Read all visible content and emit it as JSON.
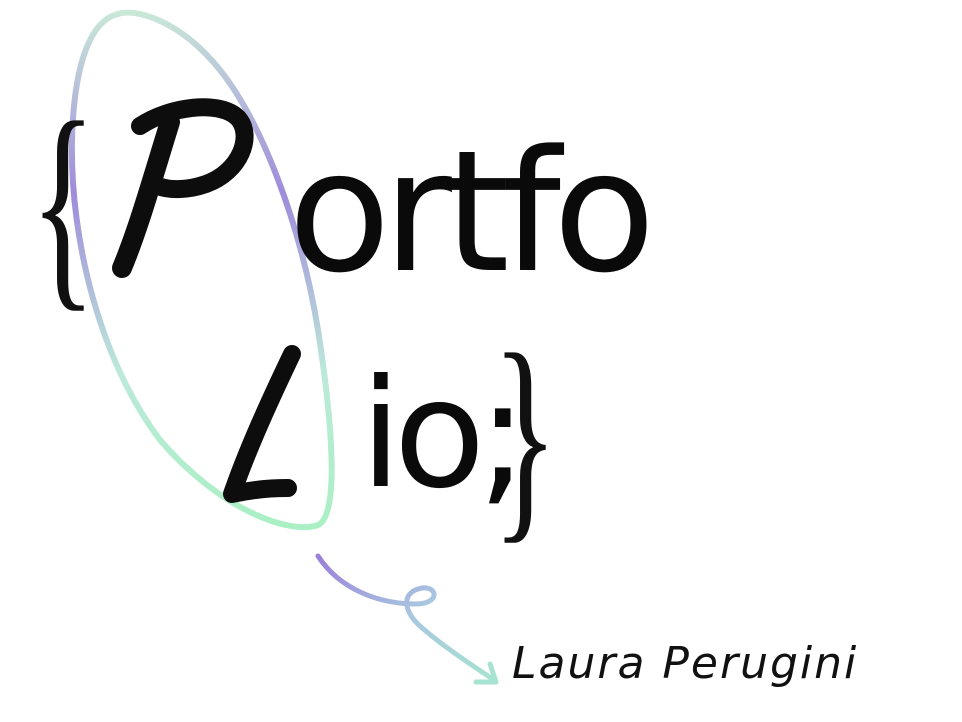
{
  "logo": {
    "open_brace": "{",
    "initial_p": "P",
    "rest_first_line": "ortfo",
    "initial_l": "L",
    "rest_second_line": "io;",
    "close_brace": "}",
    "colors": {
      "text": "#0a0a0a",
      "ellipse_top": "#8f7fd6",
      "ellipse_bottom": "#aef0c8",
      "arrow_start": "#9a7fd8",
      "arrow_end": "#a6e3d0"
    }
  },
  "author": {
    "name": "Laura Perugini"
  },
  "icons": {
    "ellipse": "highlight-ellipse",
    "arrow": "curly-arrow-icon"
  }
}
